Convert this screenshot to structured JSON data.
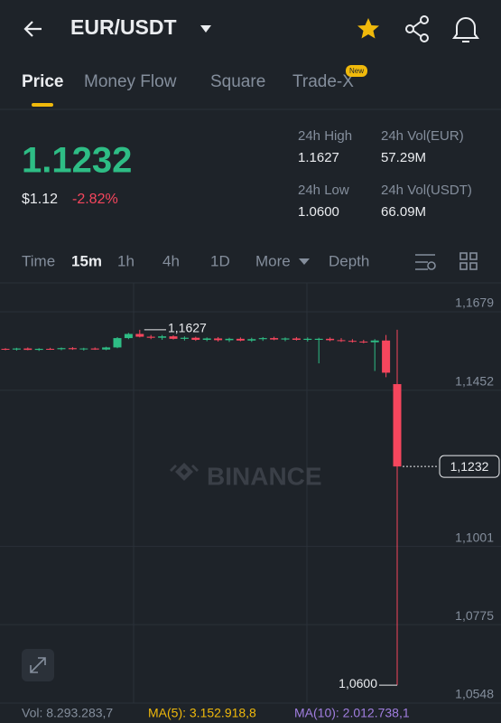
{
  "header": {
    "pair": "EUR/USDT"
  },
  "tabs": [
    "Price",
    "Money Flow",
    "Square",
    "Trade-X"
  ],
  "tab_badge": "New",
  "price": {
    "last": "1.1232",
    "usd": "$1.12",
    "change": "-2.82%"
  },
  "stats": [
    {
      "label": "24h High",
      "value": "1.1627"
    },
    {
      "label": "24h Low",
      "value": "1.0600"
    },
    {
      "label": "24h Vol(EUR)",
      "value": "57.29M"
    },
    {
      "label": "24h Vol(USDT)",
      "value": "66.09M"
    }
  ],
  "intervals": [
    "Time",
    "15m",
    "1h",
    "4h",
    "1D",
    "More",
    "Depth"
  ],
  "chart_data": {
    "type": "candlestick",
    "watermark": "BINANCE",
    "categories": [
      null,
      null,
      null,
      null,
      null,
      null,
      null,
      null,
      null,
      null,
      null,
      null,
      null,
      null,
      null,
      null,
      null,
      null,
      null,
      null,
      null,
      null,
      null,
      null,
      null,
      null,
      null,
      null,
      null,
      null,
      null,
      null,
      null,
      null,
      null,
      null
    ],
    "open": [
      1.1572,
      1.157,
      1.1573,
      1.1569,
      1.1572,
      1.1571,
      1.1574,
      1.1571,
      1.1573,
      1.157,
      1.1576,
      1.1603,
      1.1615,
      1.1607,
      1.1604,
      1.1608,
      1.1601,
      1.1604,
      1.1598,
      1.1602,
      1.1597,
      1.1601,
      1.1596,
      1.16,
      1.1603,
      1.1599,
      1.1602,
      1.1598,
      1.1598,
      1.1601,
      1.1597,
      1.1595,
      1.1593,
      1.1591,
      1.1596,
      1.147
    ],
    "high": [
      1.1574,
      1.1575,
      1.1576,
      1.1574,
      1.1575,
      1.1576,
      1.1577,
      1.1575,
      1.1576,
      1.1578,
      1.1606,
      1.1618,
      1.1627,
      1.1612,
      1.1612,
      1.1611,
      1.1608,
      1.1607,
      1.1605,
      1.1606,
      1.1604,
      1.1605,
      1.1604,
      1.1606,
      1.1607,
      1.1605,
      1.1606,
      1.1605,
      1.1604,
      1.1605,
      1.1603,
      1.16,
      1.1598,
      1.16,
      1.1612,
      1.1627
    ],
    "low": [
      1.1568,
      1.1567,
      1.1568,
      1.1566,
      1.1569,
      1.1568,
      1.1569,
      1.1567,
      1.1569,
      1.1568,
      1.1574,
      1.16,
      1.1605,
      1.16,
      1.1598,
      1.1599,
      1.1596,
      1.1595,
      1.1594,
      1.1593,
      1.1592,
      1.1594,
      1.1592,
      1.1595,
      1.1597,
      1.1594,
      1.1596,
      1.1593,
      1.153,
      1.1594,
      1.1592,
      1.159,
      1.1588,
      1.1508,
      1.149,
      1.06
    ],
    "close": [
      1.157,
      1.1573,
      1.1569,
      1.1572,
      1.1571,
      1.1574,
      1.1571,
      1.1573,
      1.157,
      1.1576,
      1.1603,
      1.1615,
      1.1607,
      1.1604,
      1.1608,
      1.1601,
      1.1604,
      1.1598,
      1.1602,
      1.1597,
      1.1601,
      1.1596,
      1.16,
      1.1603,
      1.1599,
      1.1602,
      1.1598,
      1.1601,
      1.1601,
      1.1597,
      1.1595,
      1.1593,
      1.1591,
      1.1596,
      1.1503,
      1.1232
    ],
    "up_color": "#2ebd85",
    "down_color": "#f6465d",
    "ylim": [
      1.0548,
      1.176
    ],
    "yticks": [
      {
        "value": 1.1679,
        "label": "1,1679"
      },
      {
        "value": 1.1452,
        "label": "1,1452"
      },
      {
        "value": 1.1001,
        "label": "1,1001"
      },
      {
        "value": 1.0775,
        "label": "1,0775"
      },
      {
        "value": 1.0548,
        "label": "1,0548"
      }
    ],
    "annotations": [
      {
        "value": 1.1627,
        "label": "1,1627"
      },
      {
        "value": 1.06,
        "label": "1,0600"
      },
      {
        "value": 1.1232,
        "label": "1,1232"
      }
    ],
    "footer": [
      "Vol: 8.293.283,7",
      "MA(5): 3.152.918,8",
      "MA(10): 2.012.738,1"
    ]
  }
}
